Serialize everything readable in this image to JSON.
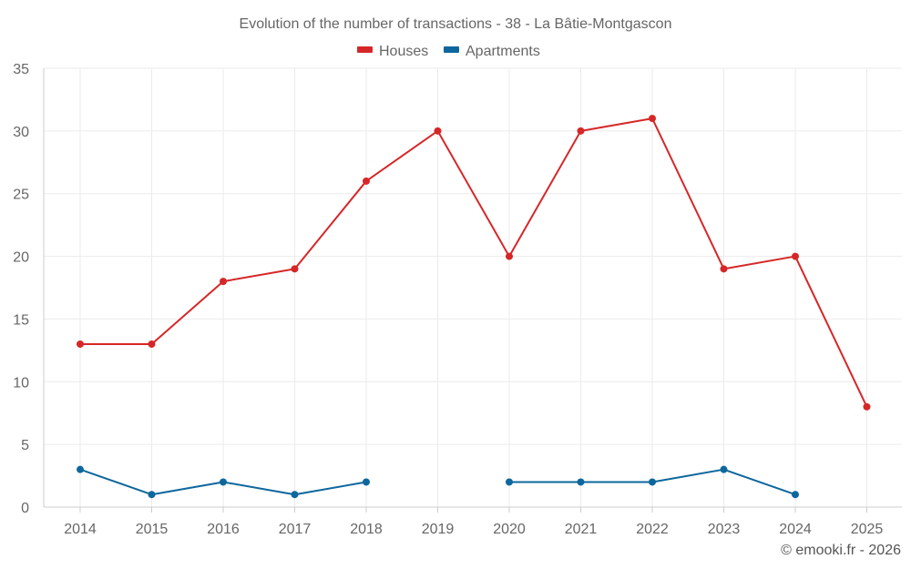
{
  "colors": {
    "houses": "#d62728",
    "apartments": "#0d679d"
  },
  "credit": "© emooki.fr - 2026",
  "chart_data": {
    "type": "line",
    "title": "Evolution of the number of transactions - 38 - La Bâtie-Montgascon",
    "xlabel": "",
    "ylabel": "",
    "categories": [
      "2014",
      "2015",
      "2016",
      "2017",
      "2018",
      "2019",
      "2020",
      "2021",
      "2022",
      "2023",
      "2024",
      "2025"
    ],
    "ylim": [
      0,
      35
    ],
    "yticks": [
      "0",
      "5",
      "10",
      "15",
      "20",
      "25",
      "30",
      "35"
    ],
    "grid": true,
    "legend_position": "top-center",
    "series": [
      {
        "name": "Houses",
        "color": "#d62728",
        "values": [
          13,
          13,
          18,
          19,
          26,
          30,
          20,
          30,
          31,
          19,
          20,
          8
        ]
      },
      {
        "name": "Apartments",
        "color": "#0d679d",
        "values": [
          3,
          1,
          2,
          1,
          2,
          null,
          2,
          2,
          2,
          3,
          1,
          null
        ]
      }
    ]
  }
}
